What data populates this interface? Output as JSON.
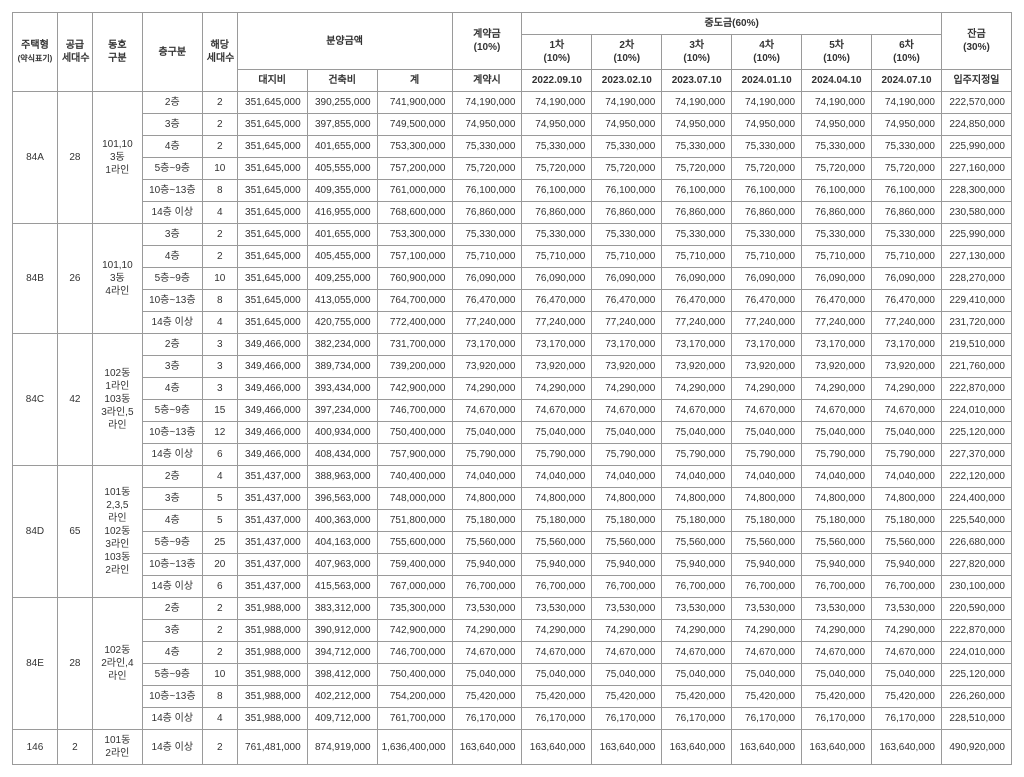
{
  "headers": {
    "type": "주택형",
    "type_sub": "(약식표기)",
    "supply": "공급\n세대수",
    "dong": "동호\n구분",
    "floor": "층구분",
    "hcount": "해당\n세대수",
    "price": "분양금액",
    "price_land": "대지비",
    "price_build": "건축비",
    "price_sum": "계",
    "deposit": "계약금\n(10%)",
    "deposit_when": "계약시",
    "mid": "중도금(60%)",
    "mid1": "1차\n(10%)",
    "mid1_date": "2022.09.10",
    "mid2": "2차\n(10%)",
    "mid2_date": "2023.02.10",
    "mid3": "3차\n(10%)",
    "mid3_date": "2023.07.10",
    "mid4": "4차\n(10%)",
    "mid4_date": "2024.01.10",
    "mid5": "5차\n(10%)",
    "mid5_date": "2024.04.10",
    "mid6": "6차\n(10%)",
    "mid6_date": "2024.07.10",
    "final": "잔금\n(30%)",
    "final_when": "입주지정일"
  },
  "groups": [
    {
      "type": "84A",
      "supply": "28",
      "dong": "101,10\n3동\n1라인",
      "rows": [
        {
          "floor": "2층",
          "hcount": "2",
          "land": "351,645,000",
          "build": "390,255,000",
          "sum": "741,900,000",
          "dep": "74,190,000",
          "m": "74,190,000",
          "fin": "222,570,000"
        },
        {
          "floor": "3층",
          "hcount": "2",
          "land": "351,645,000",
          "build": "397,855,000",
          "sum": "749,500,000",
          "dep": "74,950,000",
          "m": "74,950,000",
          "fin": "224,850,000"
        },
        {
          "floor": "4층",
          "hcount": "2",
          "land": "351,645,000",
          "build": "401,655,000",
          "sum": "753,300,000",
          "dep": "75,330,000",
          "m": "75,330,000",
          "fin": "225,990,000"
        },
        {
          "floor": "5층~9층",
          "hcount": "10",
          "land": "351,645,000",
          "build": "405,555,000",
          "sum": "757,200,000",
          "dep": "75,720,000",
          "m": "75,720,000",
          "fin": "227,160,000"
        },
        {
          "floor": "10층~13층",
          "hcount": "8",
          "land": "351,645,000",
          "build": "409,355,000",
          "sum": "761,000,000",
          "dep": "76,100,000",
          "m": "76,100,000",
          "fin": "228,300,000"
        },
        {
          "floor": "14층 이상",
          "hcount": "4",
          "land": "351,645,000",
          "build": "416,955,000",
          "sum": "768,600,000",
          "dep": "76,860,000",
          "m": "76,860,000",
          "fin": "230,580,000"
        }
      ]
    },
    {
      "type": "84B",
      "supply": "26",
      "dong": "101,10\n3동\n4라인",
      "rows": [
        {
          "floor": "3층",
          "hcount": "2",
          "land": "351,645,000",
          "build": "401,655,000",
          "sum": "753,300,000",
          "dep": "75,330,000",
          "m": "75,330,000",
          "fin": "225,990,000"
        },
        {
          "floor": "4층",
          "hcount": "2",
          "land": "351,645,000",
          "build": "405,455,000",
          "sum": "757,100,000",
          "dep": "75,710,000",
          "m": "75,710,000",
          "fin": "227,130,000"
        },
        {
          "floor": "5층~9층",
          "hcount": "10",
          "land": "351,645,000",
          "build": "409,255,000",
          "sum": "760,900,000",
          "dep": "76,090,000",
          "m": "76,090,000",
          "fin": "228,270,000"
        },
        {
          "floor": "10층~13층",
          "hcount": "8",
          "land": "351,645,000",
          "build": "413,055,000",
          "sum": "764,700,000",
          "dep": "76,470,000",
          "m": "76,470,000",
          "fin": "229,410,000"
        },
        {
          "floor": "14층 이상",
          "hcount": "4",
          "land": "351,645,000",
          "build": "420,755,000",
          "sum": "772,400,000",
          "dep": "77,240,000",
          "m": "77,240,000",
          "fin": "231,720,000"
        }
      ]
    },
    {
      "type": "84C",
      "supply": "42",
      "dong": "102동\n1라인\n103동\n3라인,5\n라인",
      "rows": [
        {
          "floor": "2층",
          "hcount": "3",
          "land": "349,466,000",
          "build": "382,234,000",
          "sum": "731,700,000",
          "dep": "73,170,000",
          "m": "73,170,000",
          "fin": "219,510,000"
        },
        {
          "floor": "3층",
          "hcount": "3",
          "land": "349,466,000",
          "build": "389,734,000",
          "sum": "739,200,000",
          "dep": "73,920,000",
          "m": "73,920,000",
          "fin": "221,760,000"
        },
        {
          "floor": "4층",
          "hcount": "3",
          "land": "349,466,000",
          "build": "393,434,000",
          "sum": "742,900,000",
          "dep": "74,290,000",
          "m": "74,290,000",
          "fin": "222,870,000"
        },
        {
          "floor": "5층~9층",
          "hcount": "15",
          "land": "349,466,000",
          "build": "397,234,000",
          "sum": "746,700,000",
          "dep": "74,670,000",
          "m": "74,670,000",
          "fin": "224,010,000"
        },
        {
          "floor": "10층~13층",
          "hcount": "12",
          "land": "349,466,000",
          "build": "400,934,000",
          "sum": "750,400,000",
          "dep": "75,040,000",
          "m": "75,040,000",
          "fin": "225,120,000"
        },
        {
          "floor": "14층 이상",
          "hcount": "6",
          "land": "349,466,000",
          "build": "408,434,000",
          "sum": "757,900,000",
          "dep": "75,790,000",
          "m": "75,790,000",
          "fin": "227,370,000"
        }
      ]
    },
    {
      "type": "84D",
      "supply": "65",
      "dong": "101동\n2,3,5\n라인\n102동\n3라인\n103동\n2라인",
      "rows": [
        {
          "floor": "2층",
          "hcount": "4",
          "land": "351,437,000",
          "build": "388,963,000",
          "sum": "740,400,000",
          "dep": "74,040,000",
          "m": "74,040,000",
          "fin": "222,120,000"
        },
        {
          "floor": "3층",
          "hcount": "5",
          "land": "351,437,000",
          "build": "396,563,000",
          "sum": "748,000,000",
          "dep": "74,800,000",
          "m": "74,800,000",
          "fin": "224,400,000"
        },
        {
          "floor": "4층",
          "hcount": "5",
          "land": "351,437,000",
          "build": "400,363,000",
          "sum": "751,800,000",
          "dep": "75,180,000",
          "m": "75,180,000",
          "fin": "225,540,000"
        },
        {
          "floor": "5층~9층",
          "hcount": "25",
          "land": "351,437,000",
          "build": "404,163,000",
          "sum": "755,600,000",
          "dep": "75,560,000",
          "m": "75,560,000",
          "fin": "226,680,000"
        },
        {
          "floor": "10층~13층",
          "hcount": "20",
          "land": "351,437,000",
          "build": "407,963,000",
          "sum": "759,400,000",
          "dep": "75,940,000",
          "m": "75,940,000",
          "fin": "227,820,000"
        },
        {
          "floor": "14층 이상",
          "hcount": "6",
          "land": "351,437,000",
          "build": "415,563,000",
          "sum": "767,000,000",
          "dep": "76,700,000",
          "m": "76,700,000",
          "fin": "230,100,000"
        }
      ]
    },
    {
      "type": "84E",
      "supply": "28",
      "dong": "102동\n2라인,4\n라인",
      "rows": [
        {
          "floor": "2층",
          "hcount": "2",
          "land": "351,988,000",
          "build": "383,312,000",
          "sum": "735,300,000",
          "dep": "73,530,000",
          "m": "73,530,000",
          "fin": "220,590,000"
        },
        {
          "floor": "3층",
          "hcount": "2",
          "land": "351,988,000",
          "build": "390,912,000",
          "sum": "742,900,000",
          "dep": "74,290,000",
          "m": "74,290,000",
          "fin": "222,870,000"
        },
        {
          "floor": "4층",
          "hcount": "2",
          "land": "351,988,000",
          "build": "394,712,000",
          "sum": "746,700,000",
          "dep": "74,670,000",
          "m": "74,670,000",
          "fin": "224,010,000"
        },
        {
          "floor": "5층~9층",
          "hcount": "10",
          "land": "351,988,000",
          "build": "398,412,000",
          "sum": "750,400,000",
          "dep": "75,040,000",
          "m": "75,040,000",
          "fin": "225,120,000"
        },
        {
          "floor": "10층~13층",
          "hcount": "8",
          "land": "351,988,000",
          "build": "402,212,000",
          "sum": "754,200,000",
          "dep": "75,420,000",
          "m": "75,420,000",
          "fin": "226,260,000"
        },
        {
          "floor": "14층 이상",
          "hcount": "4",
          "land": "351,988,000",
          "build": "409,712,000",
          "sum": "761,700,000",
          "dep": "76,170,000",
          "m": "76,170,000",
          "fin": "228,510,000"
        }
      ]
    },
    {
      "type": "146",
      "supply": "2",
      "dong": "101동\n2라인",
      "rows": [
        {
          "floor": "14층 이상",
          "hcount": "2",
          "land": "761,481,000",
          "build": "874,919,000",
          "sum": "1,636,400,000",
          "dep": "163,640,000",
          "m": "163,640,000",
          "fin": "490,920,000"
        }
      ]
    }
  ]
}
